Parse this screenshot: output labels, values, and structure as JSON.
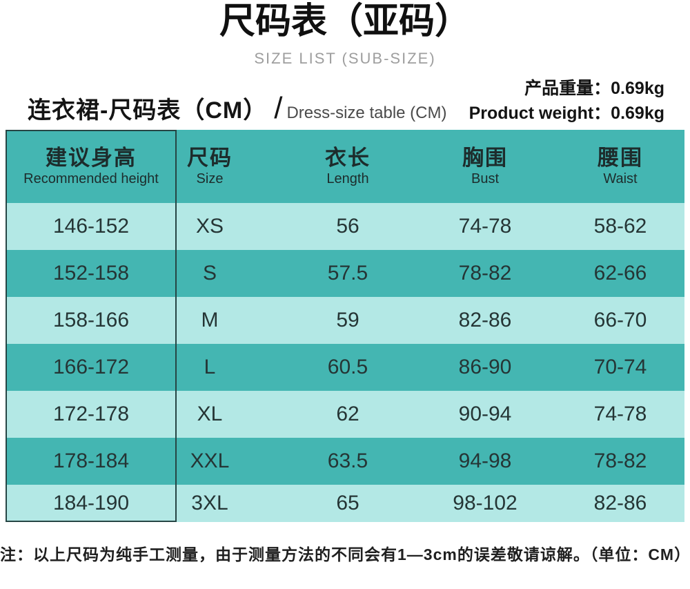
{
  "title": "尺码表（亚码）",
  "subtitle": "SIZE LIST (SUB-SIZE)",
  "product_weight": {
    "zh": "产品重量：0.69kg",
    "en": "Product weight：0.69kg"
  },
  "table_title": {
    "zh": "连衣裙-尺码表（CM）",
    "divider": "/",
    "en": "Dress-size table (CM)"
  },
  "table": {
    "headers": [
      {
        "zh": "建议身高",
        "en": "Recommended height"
      },
      {
        "zh": "尺码",
        "en": "Size"
      },
      {
        "zh": "衣长",
        "en": "Length"
      },
      {
        "zh": "胸围",
        "en": "Bust"
      },
      {
        "zh": "腰围",
        "en": "Waist"
      }
    ],
    "rows": [
      [
        "146-152",
        "XS",
        "56",
        "74-78",
        "58-62"
      ],
      [
        "152-158",
        "S",
        "57.5",
        "78-82",
        "62-66"
      ],
      [
        "158-166",
        "M",
        "59",
        "82-86",
        "66-70"
      ],
      [
        "166-172",
        "L",
        "60.5",
        "86-90",
        "70-74"
      ],
      [
        "172-178",
        "XL",
        "62",
        "90-94",
        "74-78"
      ],
      [
        "178-184",
        "XXL",
        "63.5",
        "94-98",
        "78-82"
      ],
      [
        "184-190",
        "3XL",
        "65",
        "98-102",
        "82-86"
      ]
    ]
  },
  "footnote": "注：以上尺码为纯手工测量，由于测量方法的不同会有1—3cm的误差敬请谅解。（单位：CM）",
  "colors": {
    "row_dark": "#44b6b2",
    "row_light": "#b3e8e5",
    "column_border": "#264544",
    "subtitle_gray": "#9e9e9e"
  }
}
